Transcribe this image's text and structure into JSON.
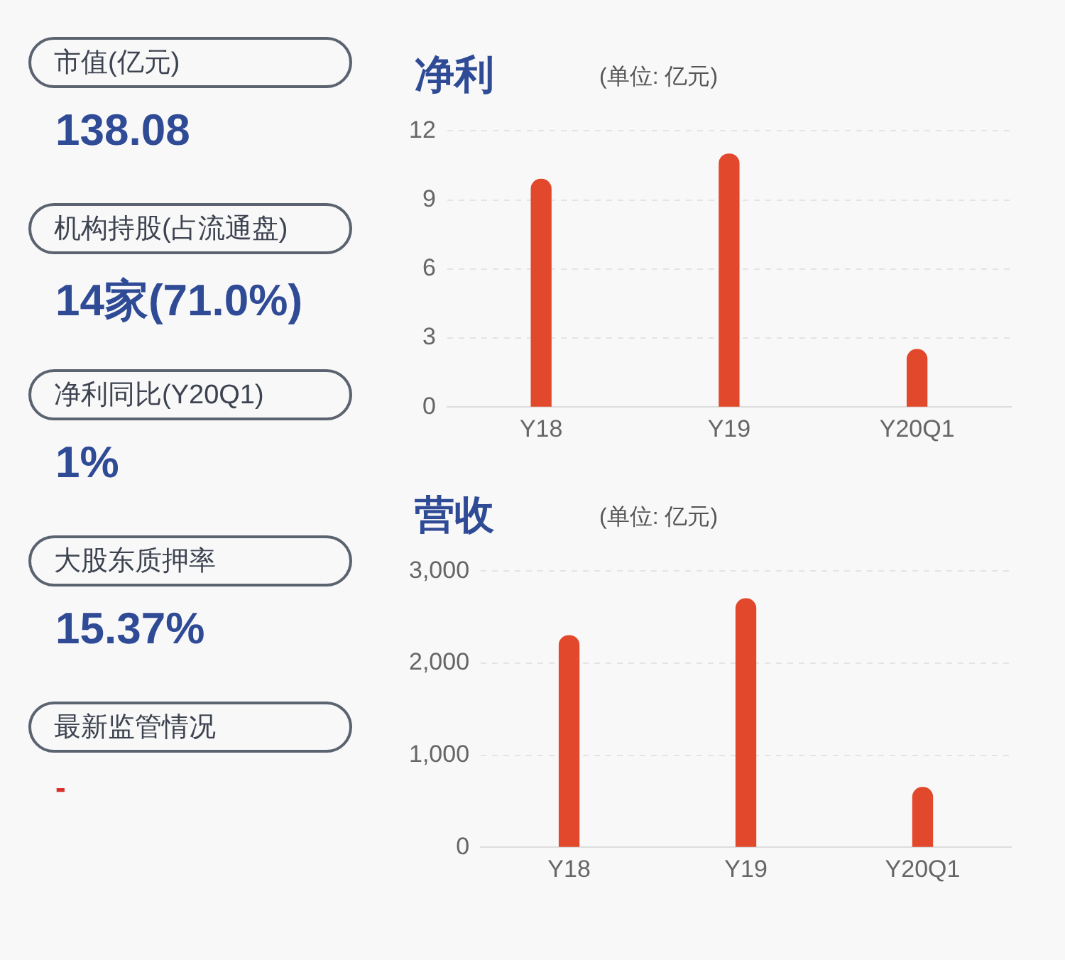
{
  "chart_data": [
    {
      "type": "other",
      "annotations": [
        "市值(亿元)",
        "138.08",
        "机构持股(占流通盘)",
        "14家(71.0%)",
        "净利同比(Y20Q1)",
        "1%",
        "大股东质押率",
        "15.37%",
        "最新监管情况",
        "-"
      ]
    },
    {
      "type": "bar",
      "title": "净利",
      "subtitle": "(单位: 亿元)",
      "categories": [
        "Y18",
        "Y19",
        "Y20Q1"
      ],
      "values": [
        9.9,
        11.0,
        2.5
      ],
      "color": "#e2482b",
      "ylim": [
        0,
        12
      ],
      "yticks": [
        0,
        3,
        6,
        9,
        12
      ],
      "grid": "y",
      "legend": false
    },
    {
      "type": "bar",
      "title": "营收",
      "subtitle": "(单位: 亿元)",
      "categories": [
        "Y18",
        "Y19",
        "Y20Q1"
      ],
      "values": [
        2300,
        2700,
        650
      ],
      "color": "#e2482b",
      "ylim": [
        0,
        3000
      ],
      "yticks": [
        0,
        {
          "value": 1000,
          "label": "1,000"
        },
        {
          "value": 2000,
          "label": "2,000"
        },
        {
          "value": 3000,
          "label": "3,000"
        }
      ],
      "grid": "y",
      "legend": false
    }
  ]
}
